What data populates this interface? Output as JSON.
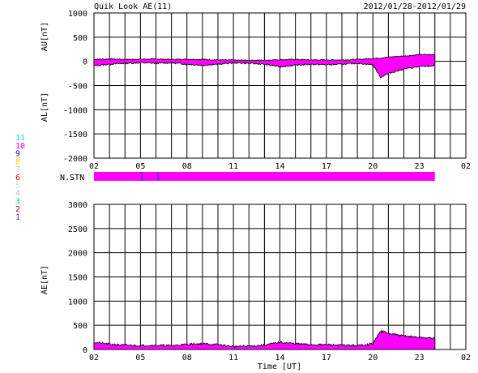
{
  "header": {
    "title": "Quik Look AE(11)",
    "date_range": "2012/01/28-2012/01/29"
  },
  "chart_data": [
    {
      "type": "area",
      "panel": "AU/AL",
      "ylabel_top": "AU[nT]",
      "ylabel_bottom": "AL[nT]",
      "ylim": [
        -2000,
        1000
      ],
      "yticks": [
        1000,
        500,
        0,
        -500,
        -1000,
        -1500,
        -2000
      ],
      "xlim": [
        2,
        26
      ],
      "xticks": [
        "02",
        "05",
        "08",
        "11",
        "14",
        "17",
        "20",
        "23",
        "02"
      ],
      "fill_color": "#ff00ff",
      "series": [
        {
          "name": "AU",
          "x": [
            2,
            3,
            4,
            5,
            6,
            7,
            8,
            9,
            10,
            11,
            12,
            13,
            14,
            15,
            16,
            17,
            18,
            19,
            20,
            20.5,
            21,
            22,
            23,
            24
          ],
          "values": [
            40,
            50,
            40,
            45,
            50,
            40,
            45,
            40,
            30,
            25,
            20,
            25,
            35,
            40,
            30,
            30,
            30,
            40,
            60,
            70,
            90,
            110,
            140,
            140
          ]
        },
        {
          "name": "AL",
          "x": [
            2,
            3,
            4,
            5,
            6,
            7,
            8,
            9,
            10,
            11,
            12,
            13,
            14,
            15,
            16,
            17,
            18,
            19,
            20,
            20.5,
            21,
            22,
            23,
            24
          ],
          "values": [
            -90,
            -60,
            -40,
            -30,
            -40,
            -30,
            -60,
            -80,
            -60,
            -30,
            -40,
            -60,
            -110,
            -80,
            -60,
            -70,
            -60,
            -40,
            -70,
            -330,
            -250,
            -160,
            -110,
            -90
          ]
        }
      ]
    },
    {
      "type": "bar",
      "panel": "stations",
      "label": "N.STN",
      "legend_numbers": [
        {
          "text": "11",
          "color": "#00e5ff"
        },
        {
          "text": "10",
          "color": "#ff00ff"
        },
        {
          "text": "9",
          "color": "#3300cc"
        },
        {
          "text": "8",
          "color": "#ffd700"
        },
        {
          "text": "7",
          "color": "#99ff66"
        },
        {
          "text": "6",
          "color": "#ff0000"
        },
        {
          "text": "5",
          "color": "#dddddd"
        },
        {
          "text": "4",
          "color": "#bbbbbb"
        },
        {
          "text": "3",
          "color": "#00cc99"
        },
        {
          "text": "2",
          "color": "#cc0000"
        },
        {
          "text": "1",
          "color": "#3333ff"
        }
      ],
      "bar_range": [
        2,
        24
      ],
      "bar_color": "#ff00ff",
      "marker_lines_x": [
        5.1,
        6.15
      ],
      "marker_color": "#3300cc"
    },
    {
      "type": "area",
      "panel": "AE",
      "ylabel": "AE[nT]",
      "xlabel": "Time [UT]",
      "ylim": [
        0,
        3000
      ],
      "yticks": [
        3000,
        2500,
        2000,
        1500,
        1000,
        500,
        0
      ],
      "xlim": [
        2,
        26
      ],
      "xticks": [
        "02",
        "05",
        "08",
        "11",
        "14",
        "17",
        "20",
        "23",
        "02"
      ],
      "fill_color": "#ff00ff",
      "series": [
        {
          "name": "AE",
          "x": [
            2,
            3,
            4,
            5,
            6,
            7,
            8,
            9,
            10,
            11,
            12,
            13,
            14,
            15,
            16,
            17,
            18,
            19,
            20,
            20.5,
            21,
            22,
            23,
            24
          ],
          "values": [
            150,
            110,
            90,
            80,
            90,
            80,
            110,
            120,
            100,
            60,
            70,
            90,
            150,
            120,
            100,
            100,
            90,
            80,
            120,
            390,
            330,
            280,
            250,
            230
          ]
        }
      ]
    }
  ]
}
